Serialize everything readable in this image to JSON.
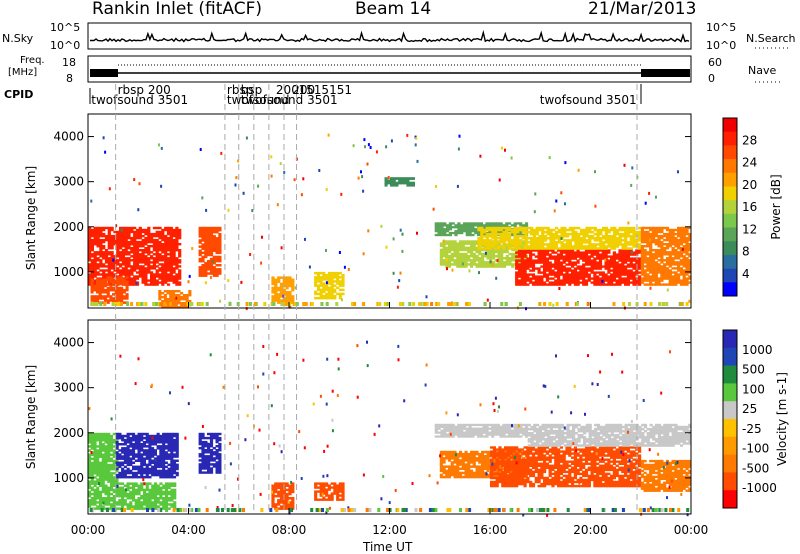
{
  "header": {
    "site": "Rankin Inlet (fitACF)",
    "beam": "Beam 14",
    "date": "21/Mar/2013"
  },
  "status_panels": {
    "nsky_label": "N.Sky",
    "nsearch_label": "N.Search",
    "nsky_ticks": [
      "10^5",
      "10^0"
    ],
    "nsearch_ticks": [
      "10^5",
      "10^0"
    ],
    "freq_label_top": "Freq.",
    "freq_label_bottom": "[MHz]",
    "freq_ticks": [
      "18",
      "8"
    ],
    "nave_ticks": [
      "60",
      "0"
    ],
    "nave_label": "Nave",
    "cpid_label": "CPID",
    "cpid_entries": [
      {
        "text": "rbsp 200",
        "time_h": 1.1
      },
      {
        "text": "twofsound 3501",
        "time_h": 0.05
      },
      {
        "text": "rbsp",
        "time_h": 5.45
      },
      {
        "text": "twofsound",
        "time_h": 5.45
      },
      {
        "text": "bsp",
        "time_h": 6.0
      },
      {
        "text": "twofsound 3501",
        "time_h": 6.0
      },
      {
        "text": "200",
        "time_h": 7.4
      },
      {
        "text": "200",
        "time_h": 8.05
      },
      {
        "text": "1515151",
        "time_h": 8.3
      },
      {
        "text": "twofsound 3501",
        "time_h": 17.9
      }
    ]
  },
  "colorbars": {
    "power": {
      "title": "Power [dB]",
      "ticks": [
        "28",
        "24",
        "20",
        "16",
        "12",
        "8",
        "4"
      ],
      "colors": [
        "#0000ff",
        "#1e46b4",
        "#2a6ea0",
        "#3c8c5a",
        "#5aa55a",
        "#7cc84a",
        "#b4d23c",
        "#f0d000",
        "#ffa000",
        "#ff7800",
        "#ff4a00",
        "#ff2000",
        "#f00000"
      ]
    },
    "velocity": {
      "title": "Velocity [m s-1]",
      "ticks": [
        "1000",
        "500",
        "100",
        "25",
        "-25",
        "-100",
        "-500",
        "-1000"
      ],
      "colors": [
        "#ff0000",
        "#ff4c00",
        "#ff7a00",
        "#ff9a00",
        "#ffc000",
        "#c8c8c8",
        "#5ac83c",
        "#1e8c3c",
        "#1e46b4",
        "#2828b4"
      ]
    }
  },
  "chart_data": [
    {
      "type": "heatmap",
      "name": "Power",
      "ylabel": "Slant Range [km]",
      "y_ticks": [
        "1000",
        "2000",
        "3000",
        "4000"
      ],
      "ylim": [
        200,
        4500
      ],
      "xlim": [
        0,
        24
      ],
      "scale": "Power [dB]",
      "range": [
        0,
        30
      ],
      "regions": [
        {
          "t": [
            0.0,
            3.7
          ],
          "r": [
            700,
            2000
          ],
          "level": 26
        },
        {
          "t": [
            0.1,
            1.6
          ],
          "r": [
            300,
            900
          ],
          "level": 24
        },
        {
          "t": [
            4.4,
            5.3
          ],
          "r": [
            900,
            2000
          ],
          "level": 24
        },
        {
          "t": [
            2.8,
            4.1
          ],
          "r": [
            200,
            600
          ],
          "level": 22
        },
        {
          "t": [
            7.3,
            8.2
          ],
          "r": [
            300,
            900
          ],
          "level": 20
        },
        {
          "t": [
            9.0,
            10.2
          ],
          "r": [
            400,
            1000
          ],
          "level": 18
        },
        {
          "t": [
            13.8,
            17.5
          ],
          "r": [
            1800,
            2100
          ],
          "level": 10
        },
        {
          "t": [
            14.0,
            17.5
          ],
          "r": [
            1100,
            1700
          ],
          "level": 16
        },
        {
          "t": [
            17.0,
            22.0
          ],
          "r": [
            700,
            1500
          ],
          "level": 26
        },
        {
          "t": [
            15.5,
            22.0
          ],
          "r": [
            1500,
            2000
          ],
          "level": 18
        },
        {
          "t": [
            22.0,
            24.0
          ],
          "r": [
            700,
            2000
          ],
          "level": 22
        },
        {
          "t": [
            11.8,
            13.0
          ],
          "r": [
            2900,
            3100
          ],
          "level": 8
        }
      ]
    },
    {
      "type": "heatmap",
      "name": "Velocity",
      "ylabel": "Slant Range [km]",
      "y_ticks": [
        "1000",
        "2000",
        "3000",
        "4000"
      ],
      "ylim": [
        200,
        4500
      ],
      "xlim": [
        0,
        24
      ],
      "scale": "Velocity [m s-1]",
      "range": [
        -1000,
        1000
      ],
      "regions": [
        {
          "t": [
            0.0,
            1.2
          ],
          "r": [
            900,
            2000
          ],
          "level": 80
        },
        {
          "t": [
            1.1,
            3.6
          ],
          "r": [
            1000,
            2000
          ],
          "level": 800
        },
        {
          "t": [
            4.4,
            5.3
          ],
          "r": [
            1100,
            2000
          ],
          "level": 700
        },
        {
          "t": [
            0.0,
            3.5
          ],
          "r": [
            300,
            900
          ],
          "level": 40
        },
        {
          "t": [
            7.3,
            8.2
          ],
          "r": [
            300,
            900
          ],
          "level": -300
        },
        {
          "t": [
            9.0,
            10.2
          ],
          "r": [
            500,
            900
          ],
          "level": -400
        },
        {
          "t": [
            13.8,
            17.5
          ],
          "r": [
            1900,
            2200
          ],
          "level": 0
        },
        {
          "t": [
            14.0,
            17.5
          ],
          "r": [
            1000,
            1600
          ],
          "level": -200
        },
        {
          "t": [
            16.0,
            22.0
          ],
          "r": [
            800,
            1700
          ],
          "level": -300
        },
        {
          "t": [
            17.5,
            24.0
          ],
          "r": [
            1700,
            2200
          ],
          "level": 0
        },
        {
          "t": [
            22.0,
            24.0
          ],
          "r": [
            700,
            1400
          ],
          "level": -150
        }
      ]
    }
  ],
  "x_axis": {
    "ticks": [
      "00:00",
      "04:00",
      "08:00",
      "12:00",
      "16:00",
      "20:00",
      "00:00"
    ],
    "label": "Time UT"
  }
}
